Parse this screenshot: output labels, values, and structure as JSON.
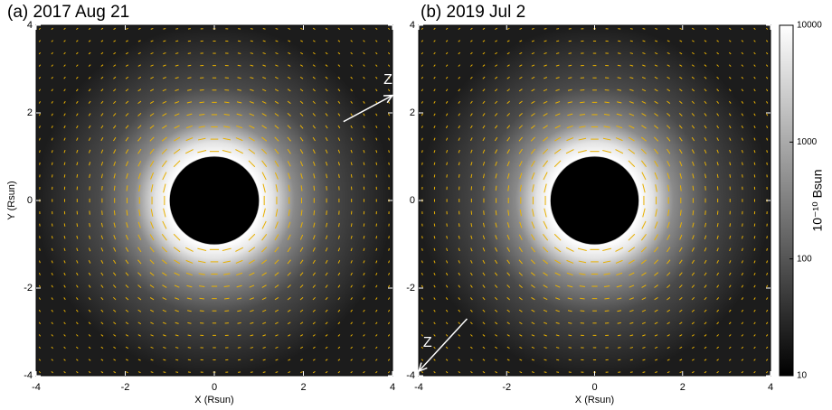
{
  "chart_data": [
    {
      "type": "image",
      "title": "(a) 2017 Aug 21",
      "xlabel": "X (Rsun)",
      "ylabel": "Y (Rsun)",
      "xlim": [
        -4,
        4
      ],
      "ylim": [
        -4,
        4
      ],
      "xticks": [
        -4,
        -2,
        0,
        2,
        4
      ],
      "yticks": [
        -4,
        -2,
        0,
        2,
        4
      ],
      "annotation": "Z"
    },
    {
      "type": "image",
      "title": "(b) 2019 Jul 2",
      "xlabel": "X (Rsun)",
      "xlim": [
        -4,
        4
      ],
      "ylim": [
        -4,
        4
      ],
      "xticks": [
        -4,
        -2,
        0,
        2,
        4
      ],
      "yticks": [
        -4,
        -2,
        0,
        2,
        4
      ],
      "annotation": "Z"
    },
    {
      "type": "colorbar",
      "label": "10⁻¹⁰ Bsun",
      "log": true,
      "ylim": [
        10,
        10000
      ],
      "yticks": [
        10,
        100,
        1000,
        10000
      ]
    }
  ]
}
